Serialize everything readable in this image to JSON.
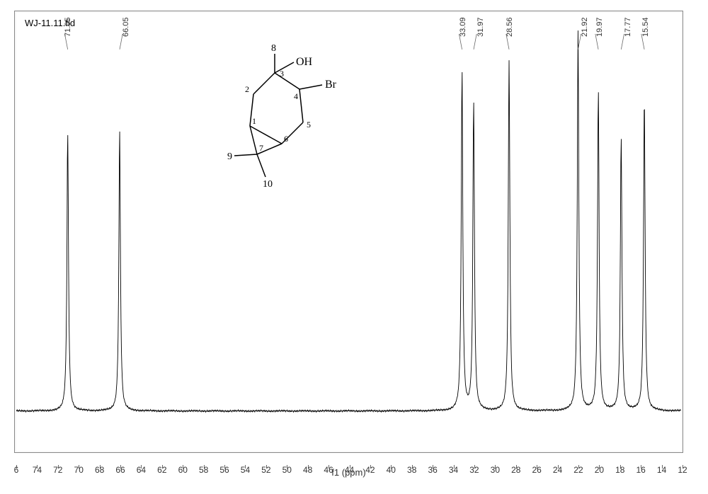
{
  "type": "nmr-spectrum",
  "title": "WJ-11.11.fid",
  "x_axis": {
    "label": "f1 (ppm)",
    "min": 12,
    "max": 76,
    "ticks": [
      76,
      74,
      72,
      70,
      68,
      66,
      64,
      62,
      60,
      58,
      56,
      54,
      52,
      50,
      48,
      46,
      44,
      42,
      40,
      38,
      36,
      34,
      32,
      30,
      28,
      26,
      24,
      22,
      20,
      18,
      16,
      14,
      12
    ],
    "tick_labels": [
      "6",
      "74",
      "72",
      "70",
      "68",
      "66",
      "64",
      "62",
      "60",
      "58",
      "56",
      "54",
      "52",
      "50",
      "48",
      "46",
      "44",
      "42",
      "40",
      "38",
      "36",
      "34",
      "32",
      "30",
      "28",
      "26",
      "24",
      "22",
      "20",
      "18",
      "16",
      "14",
      "12"
    ],
    "fontsize": 12
  },
  "y_axis": {
    "min": -500,
    "max": 5000,
    "ticks": [
      -500,
      0,
      500,
      1000,
      1500,
      2000,
      2500,
      3000,
      3500,
      4000,
      4500,
      5000
    ],
    "fontsize": 12
  },
  "peaks": [
    {
      "ppm": 71.05,
      "intensity": 3510
    },
    {
      "ppm": 66.05,
      "intensity": 3540
    },
    {
      "ppm": 33.09,
      "intensity": 4280
    },
    {
      "ppm": 31.97,
      "intensity": 3890
    },
    {
      "ppm": 28.56,
      "intensity": 4400
    },
    {
      "ppm": 21.92,
      "intensity": 4770
    },
    {
      "ppm": 19.97,
      "intensity": 4030
    },
    {
      "ppm": 17.77,
      "intensity": 3440
    },
    {
      "ppm": 15.54,
      "intensity": 3960
    }
  ],
  "peak_labels": [
    "71.05",
    "66.05",
    "33.09",
    "31.97",
    "28.56",
    "21.92",
    "19.97",
    "17.77",
    "15.54"
  ],
  "colors": {
    "background": "#ffffff",
    "plot_border": "#888888",
    "spectrum_line": "#000000",
    "text": "#333333",
    "structure_line": "#000000",
    "label_line": "#666666"
  },
  "structure": {
    "atoms": {
      "C1": "1",
      "C2": "2",
      "C3": "3",
      "C4": "4",
      "C5": "5",
      "C6": "6",
      "C7": "7",
      "C8": "8",
      "C9": "9",
      "C10": "10"
    },
    "substituents": {
      "OH": "OH",
      "Br": "Br"
    }
  },
  "baseline_noise_amplitude": 15,
  "peak_width": 0.18
}
